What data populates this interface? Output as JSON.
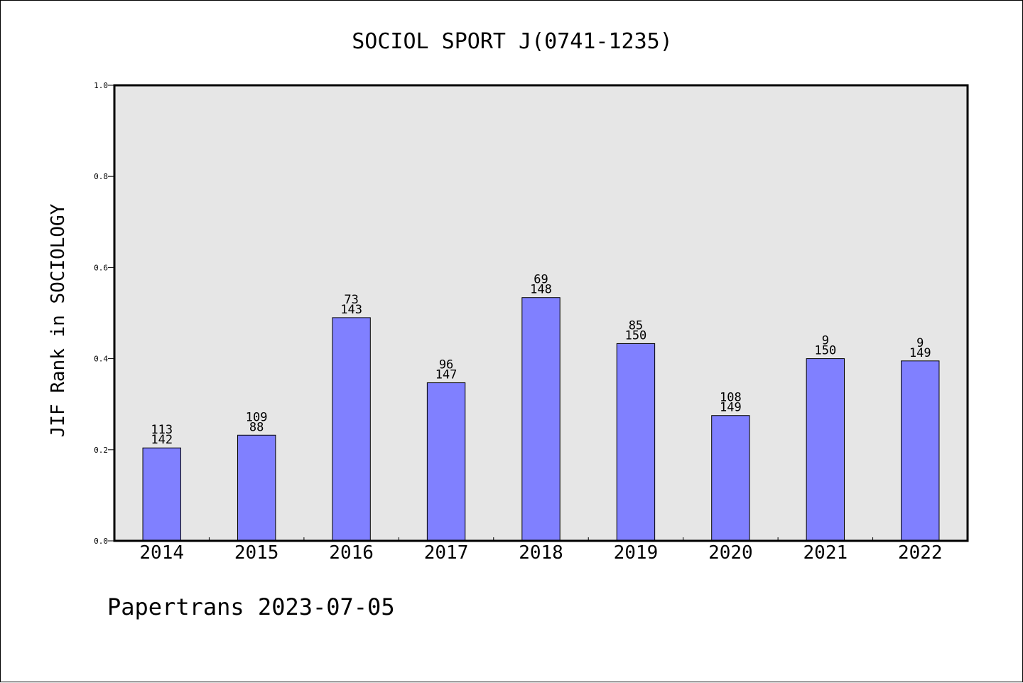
{
  "chart_data": {
    "type": "bar",
    "title": "SOCIOL SPORT J(0741-1235)",
    "xlabel": "",
    "ylabel": "JIF Rank in SOCIOLOGY",
    "ylim": [
      0.0,
      1.0
    ],
    "yticks": [
      "0.0",
      "0.2",
      "0.4",
      "0.6",
      "0.8",
      "1.0"
    ],
    "grid": false,
    "legend": "none",
    "categories": [
      "2014",
      "2015",
      "2016",
      "2017",
      "2018",
      "2019",
      "2020",
      "2021",
      "2022"
    ],
    "values": [
      0.204,
      0.232,
      0.49,
      0.347,
      0.534,
      0.433,
      0.275,
      0.4,
      0.395
    ],
    "labels_top": [
      "113",
      "109",
      "73",
      "96",
      "69",
      "85",
      "108",
      "9",
      "9"
    ],
    "labels_bottom": [
      "142",
      "88",
      "143",
      "147",
      "148",
      "150",
      "149",
      "150",
      "149"
    ],
    "colors": {
      "bar": "#8080ff",
      "plot_background": "#e6e6e6",
      "edge": "#000000"
    }
  },
  "footer": {
    "credit": "Papertrans 2023-07-05"
  }
}
